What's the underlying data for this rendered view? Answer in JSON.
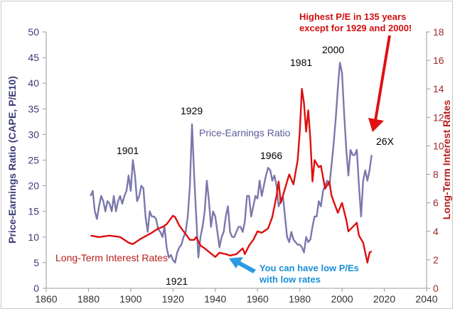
{
  "chart_data": {
    "type": "line",
    "title": "",
    "xlabel": "",
    "ylabel": "Price-Earnings Ratio (CAPE, P/E10)",
    "y2label": "Long-Term Interest Rates",
    "xlim": [
      1860,
      2040
    ],
    "ylim": [
      0,
      50
    ],
    "y2lim": [
      0,
      18
    ],
    "xticks": [
      "1860",
      "1880",
      "1900",
      "1920",
      "1940",
      "1960",
      "1980",
      "2000",
      "2020",
      "2040"
    ],
    "yticks": [
      "0",
      "5",
      "10",
      "15",
      "20",
      "25",
      "30",
      "35",
      "40",
      "45",
      "50"
    ],
    "y2ticks": [
      "0",
      "2",
      "4",
      "6",
      "8",
      "10",
      "12",
      "14",
      "16",
      "18"
    ],
    "grid": false,
    "colors": {
      "pe": "#7b78ad",
      "rates": "#dd0f0f",
      "left_axis_text": "#3b3b7a",
      "right_axis_text": "#9b2b2b",
      "callout_red": "#d01010",
      "callout_blue": "#1a8fd8"
    },
    "series": [
      {
        "name": "Price-Earnings Ratio",
        "axis": "left",
        "x": [
          1881,
          1882,
          1883,
          1884,
          1885,
          1886,
          1887,
          1888,
          1889,
          1890,
          1891,
          1892,
          1893,
          1894,
          1895,
          1896,
          1897,
          1898,
          1899,
          1900,
          1901,
          1902,
          1903,
          1904,
          1905,
          1906,
          1907,
          1908,
          1909,
          1910,
          1911,
          1912,
          1913,
          1914,
          1915,
          1916,
          1917,
          1918,
          1919,
          1920,
          1921,
          1922,
          1923,
          1924,
          1925,
          1926,
          1927,
          1928,
          1929,
          1930,
          1931,
          1932,
          1933,
          1934,
          1935,
          1936,
          1937,
          1938,
          1939,
          1940,
          1941,
          1942,
          1943,
          1944,
          1945,
          1946,
          1947,
          1948,
          1949,
          1950,
          1951,
          1952,
          1953,
          1954,
          1955,
          1956,
          1957,
          1958,
          1959,
          1960,
          1961,
          1962,
          1963,
          1964,
          1965,
          1966,
          1967,
          1968,
          1969,
          1970,
          1971,
          1972,
          1973,
          1974,
          1975,
          1976,
          1977,
          1978,
          1979,
          1980,
          1981,
          1982,
          1983,
          1984,
          1985,
          1986,
          1987,
          1988,
          1989,
          1990,
          1991,
          1992,
          1993,
          1994,
          1995,
          1996,
          1997,
          1998,
          1999,
          2000,
          2001,
          2002,
          2003,
          2004,
          2005,
          2006,
          2007,
          2008,
          2009,
          2010,
          2011,
          2012,
          2013,
          2014
        ],
        "values": [
          18,
          19,
          15,
          13.5,
          16,
          18,
          17,
          15,
          17,
          16.5,
          15,
          18,
          15,
          17,
          18,
          16.5,
          18,
          19,
          22,
          19,
          25,
          22,
          17,
          18,
          20,
          19.5,
          14,
          11,
          15,
          14,
          14,
          13.5,
          11.5,
          11,
          10,
          12,
          8,
          6,
          6.5,
          5.5,
          5,
          7,
          8,
          8.5,
          10,
          11,
          14,
          20,
          32,
          22,
          14,
          6,
          10,
          12,
          15,
          21,
          17,
          12,
          15,
          14,
          11,
          8,
          10,
          11,
          14,
          16,
          11,
          10,
          10,
          11,
          12,
          12,
          11,
          13,
          18,
          18,
          14,
          16,
          18,
          17.5,
          21,
          18,
          20,
          22,
          23.5,
          23,
          21,
          22,
          20,
          16,
          17,
          18,
          14,
          10,
          9,
          11,
          9.5,
          9,
          8.5,
          8.5,
          8,
          7,
          10,
          9,
          9.5,
          12,
          14,
          14,
          17,
          16,
          19,
          20,
          21,
          20,
          24,
          28,
          33,
          39,
          44,
          42,
          34,
          27,
          22,
          27,
          26,
          26,
          27,
          20,
          14,
          21,
          23,
          21,
          23,
          26
        ]
      },
      {
        "name": "Long-Term Interest Rates",
        "axis": "right",
        "x": [
          1881,
          1885,
          1890,
          1895,
          1899,
          1901,
          1905,
          1910,
          1913,
          1915,
          1917,
          1920,
          1921,
          1923,
          1928,
          1930,
          1931,
          1933,
          1935,
          1940,
          1942,
          1945,
          1947,
          1950,
          1953,
          1954,
          1956,
          1958,
          1960,
          1962,
          1965,
          1967,
          1969,
          1970,
          1971,
          1973,
          1975,
          1977,
          1979,
          1980,
          1981,
          1982,
          1983,
          1984,
          1985,
          1986,
          1987,
          1989,
          1990,
          1992,
          1994,
          1995,
          1998,
          2000,
          2002,
          2003,
          2005,
          2007,
          2008,
          2010,
          2012,
          2013,
          2014
        ],
        "values": [
          3.7,
          3.6,
          3.7,
          3.6,
          3.2,
          3.1,
          3.5,
          3.9,
          4.2,
          4.3,
          4.5,
          5.1,
          5.0,
          4.4,
          3.4,
          3.4,
          3.6,
          3.0,
          2.8,
          2.2,
          2.5,
          2.4,
          2.3,
          2.4,
          2.8,
          2.4,
          3.0,
          3.4,
          4.0,
          3.9,
          4.2,
          5.0,
          6.5,
          7.5,
          6.0,
          7.0,
          8.0,
          7.3,
          9.0,
          11,
          14,
          13,
          11,
          12.5,
          10.5,
          7.5,
          9,
          8.5,
          8.6,
          7,
          7.5,
          6.5,
          5.3,
          6,
          4.8,
          4,
          4.3,
          4.6,
          3.7,
          3.2,
          1.8,
          2.5,
          2.6
        ]
      }
    ],
    "annotations": {
      "pe_label": "Price-Earnings Ratio",
      "rates_label": "Long-Term Interest Rates",
      "y1901": "1901",
      "y1921": "1921",
      "y1929": "1929",
      "y1966": "1966",
      "y1981": "1981",
      "y2000": "2000",
      "current": "26X",
      "callout_red_line1": "Highest P/E in 135 years",
      "callout_red_line2": "except for 1929 and 2000!",
      "callout_blue_line1": "You can have low P/Es",
      "callout_blue_line2": "with low rates"
    }
  }
}
